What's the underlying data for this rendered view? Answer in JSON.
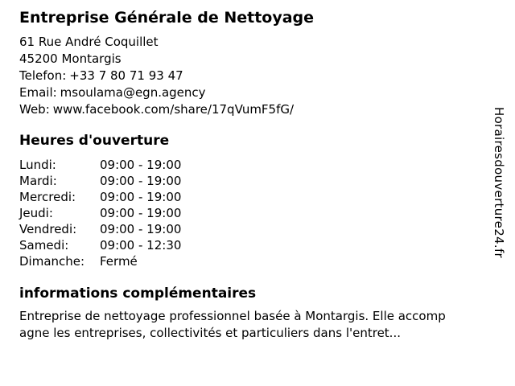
{
  "header": {
    "title": "Entreprise Générale de Nettoyage"
  },
  "contact": {
    "address_line1": "61 Rue André Coquillet",
    "address_line2": "45200 Montargis",
    "phone_label": "Telefon:",
    "phone_value": "+33 7 80 71 93 47",
    "email_label": "Email:",
    "email_value": "msoulama@egn.agency",
    "web_label": "Web:",
    "web_value": "www.facebook.com/share/17qVumF5fG/"
  },
  "hours": {
    "heading": "Heures d'ouverture",
    "rows": [
      {
        "day": "Lundi:",
        "time": "09:00 - 19:00"
      },
      {
        "day": "Mardi:",
        "time": "09:00 - 19:00"
      },
      {
        "day": "Mercredi:",
        "time": "09:00 - 19:00"
      },
      {
        "day": "Jeudi:",
        "time": "09:00 - 19:00"
      },
      {
        "day": "Vendredi:",
        "time": "09:00 - 19:00"
      },
      {
        "day": "Samedi:",
        "time": "09:00 - 12:30"
      },
      {
        "day": "Dimanche:",
        "time": "Fermé"
      }
    ]
  },
  "info": {
    "heading": "informations complémentaires",
    "line1": "Entreprise de nettoyage professionnel basée à Montargis. Elle accomp",
    "line2": "agne les entreprises, collectivités et particuliers dans l'entret..."
  },
  "watermark": {
    "text": "Horairesdouverture24.fr"
  },
  "colors": {
    "background": "#ffffff",
    "text": "#000000"
  }
}
